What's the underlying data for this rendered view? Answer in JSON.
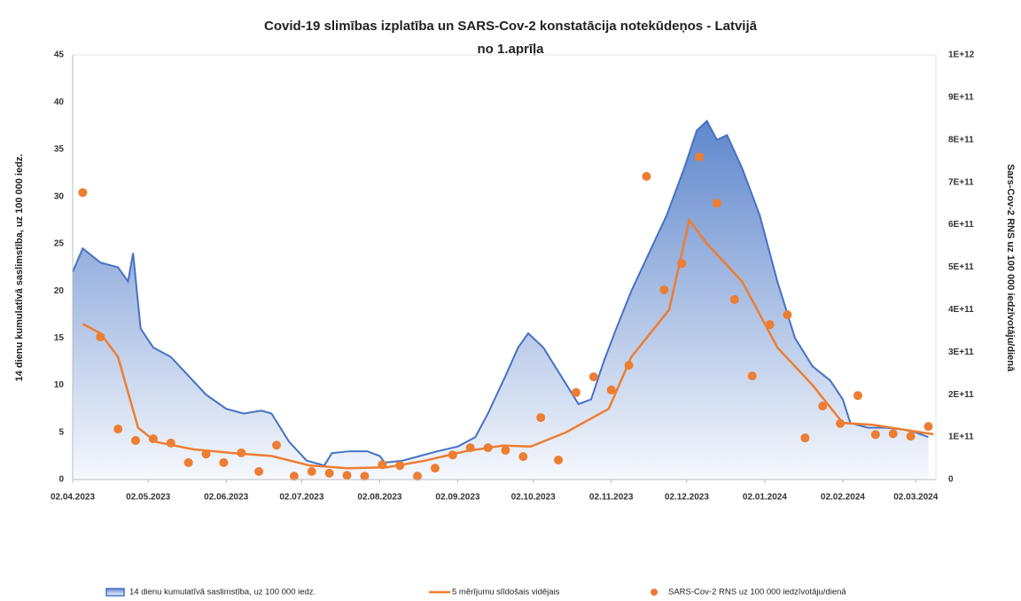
{
  "chart_data": {
    "type": "combo",
    "title": [
      "Covid-19 slimības izplatība un SARS-Cov-2 konstatācija notekūdeņos - Latvijā",
      "no 1.aprīļa"
    ],
    "y_label": "14 dienu kumulatīvā saslimstība, uz 100 000 iedz.",
    "y2_label": "Sars-Cov-2 RNS uz 100 000 iedzīvotāju/dienā",
    "xlim": [
      "2023-04-02",
      "2024-03-10"
    ],
    "xticks": [
      {
        "value": "2023-04-02",
        "label": "02.04.2023"
      },
      {
        "value": "2023-05-02",
        "label": "02.05.2023"
      },
      {
        "value": "2023-06-02",
        "label": "02.06.2023"
      },
      {
        "value": "2023-07-02",
        "label": "02.07.2023"
      },
      {
        "value": "2023-08-02",
        "label": "02.08.2023"
      },
      {
        "value": "2023-09-02",
        "label": "02.09.2023"
      },
      {
        "value": "2023-10-02",
        "label": "02.10.2023"
      },
      {
        "value": "2023-11-02",
        "label": "02.11.2023"
      },
      {
        "value": "2023-12-02",
        "label": "02.12.2023"
      },
      {
        "value": "2024-01-02",
        "label": "02.01.2024"
      },
      {
        "value": "2024-02-02",
        "label": "02.02.2024"
      },
      {
        "value": "2024-03-02",
        "label": "02.03.2024"
      }
    ],
    "ylim": [
      0,
      45
    ],
    "yticks": [
      0,
      5,
      10,
      15,
      20,
      25,
      30,
      35,
      40,
      45
    ],
    "y2lim": [
      0,
      1000000000000.0
    ],
    "y2ticks": [
      0,
      {
        "value": 100000000000.0,
        "label": "1E+11"
      },
      {
        "value": 200000000000.0,
        "label": "2E+11"
      },
      {
        "value": 300000000000.0,
        "label": "3E+11"
      },
      {
        "value": 400000000000.0,
        "label": "4E+11"
      },
      {
        "value": 500000000000.0,
        "label": "5E+11"
      },
      {
        "value": 600000000000.0,
        "label": "6E+11"
      },
      {
        "value": 700000000000.0,
        "label": "7E+11"
      },
      {
        "value": 800000000000.0,
        "label": "8E+11"
      },
      {
        "value": 900000000000.0,
        "label": "9E+11"
      },
      {
        "value": 1000000000000.0,
        "label": "1E+12"
      }
    ],
    "grid": false,
    "legend": "bottom",
    "series": [
      {
        "name": "14 dienu kumulatīvā saslimstība, uz 100 000 iedz.",
        "kind": "area",
        "color": "#4472c4",
        "x": [
          "2023-04-02",
          "2023-04-06",
          "2023-04-13",
          "2023-04-20",
          "2023-04-24",
          "2023-04-26",
          "2023-04-29",
          "2023-05-04",
          "2023-05-11",
          "2023-05-18",
          "2023-05-25",
          "2023-06-02",
          "2023-06-09",
          "2023-06-16",
          "2023-06-20",
          "2023-06-27",
          "2023-07-04",
          "2023-07-11",
          "2023-07-14",
          "2023-07-21",
          "2023-07-28",
          "2023-08-02",
          "2023-08-04",
          "2023-08-11",
          "2023-08-18",
          "2023-08-25",
          "2023-09-02",
          "2023-09-09",
          "2023-09-14",
          "2023-09-21",
          "2023-09-26",
          "2023-09-30",
          "2023-10-06",
          "2023-10-13",
          "2023-10-20",
          "2023-10-25",
          "2023-10-30",
          "2023-11-04",
          "2023-11-10",
          "2023-11-17",
          "2023-11-24",
          "2023-12-01",
          "2023-12-06",
          "2023-12-10",
          "2023-12-14",
          "2023-12-18",
          "2023-12-24",
          "2023-12-31",
          "2024-01-07",
          "2024-01-14",
          "2024-01-21",
          "2024-01-28",
          "2024-02-02",
          "2024-02-05",
          "2024-02-12",
          "2024-02-19",
          "2024-02-26",
          "2024-03-02",
          "2024-03-07"
        ],
        "values": [
          22,
          24.5,
          23,
          22.5,
          21,
          24,
          16,
          14,
          13,
          11,
          9,
          7.5,
          7,
          7.3,
          7,
          4,
          2,
          1.5,
          2.8,
          3,
          3,
          2.5,
          1.8,
          2,
          2.5,
          3,
          3.5,
          4.5,
          7,
          11,
          14,
          15.5,
          14,
          11,
          8,
          8.5,
          12.5,
          16,
          20,
          24,
          28,
          33,
          37,
          38,
          36,
          36.5,
          33,
          28,
          21,
          15,
          12,
          10.5,
          8.5,
          6,
          5.5,
          5.5,
          5.3,
          5,
          4.5
        ]
      },
      {
        "name": "5 mērījumu slīdošais vidējais",
        "kind": "line",
        "color": "#ed7d31",
        "x": [
          "2023-04-06",
          "2023-04-13",
          "2023-04-20",
          "2023-04-28",
          "2023-05-05",
          "2023-05-20",
          "2023-06-05",
          "2023-06-20",
          "2023-07-05",
          "2023-07-20",
          "2023-08-05",
          "2023-08-20",
          "2023-09-05",
          "2023-09-20",
          "2023-10-01",
          "2023-10-15",
          "2023-11-01",
          "2023-11-10",
          "2023-11-25",
          "2023-12-03",
          "2023-12-10",
          "2023-12-24",
          "2024-01-07",
          "2024-01-21",
          "2024-02-02",
          "2024-02-14",
          "2024-03-09"
        ],
        "values": [
          16.5,
          15.5,
          13,
          5.5,
          4,
          3.2,
          2.8,
          2.5,
          1.5,
          1.2,
          1.3,
          2,
          3,
          3.6,
          3.5,
          5,
          7.5,
          13,
          18,
          27.5,
          25,
          21,
          14,
          10,
          6,
          5.8,
          4.8
        ]
      },
      {
        "name": "SARS-Cov-2 RNS uz 100 000 iedzīvotāju/dienā",
        "kind": "scatter",
        "axis": "y2",
        "color": "#ed7d31",
        "x": [
          "2023-04-06",
          "2023-04-13",
          "2023-04-20",
          "2023-04-27",
          "2023-05-04",
          "2023-05-11",
          "2023-05-18",
          "2023-05-25",
          "2023-06-01",
          "2023-06-08",
          "2023-06-15",
          "2023-06-22",
          "2023-06-29",
          "2023-07-06",
          "2023-07-13",
          "2023-07-20",
          "2023-07-27",
          "2023-08-03",
          "2023-08-10",
          "2023-08-17",
          "2023-08-24",
          "2023-08-31",
          "2023-09-07",
          "2023-09-14",
          "2023-09-21",
          "2023-09-28",
          "2023-10-05",
          "2023-10-12",
          "2023-10-19",
          "2023-10-26",
          "2023-11-02",
          "2023-11-09",
          "2023-11-16",
          "2023-11-23",
          "2023-11-30",
          "2023-12-07",
          "2023-12-14",
          "2023-12-21",
          "2023-12-28",
          "2024-01-04",
          "2024-01-11",
          "2024-01-18",
          "2024-01-25",
          "2024-02-01",
          "2024-02-08",
          "2024-02-15",
          "2024-02-22",
          "2024-02-29",
          "2024-03-07"
        ],
        "values": [
          676000000000.0,
          336000000000.0,
          119000000000.0,
          92000000000.0,
          96000000000.0,
          86000000000.0,
          40000000000.0,
          60000000000.0,
          40000000000.0,
          63000000000.0,
          19000000000.0,
          81000000000.0,
          8000000000.0,
          19000000000.0,
          15000000000.0,
          10000000000.0,
          8000000000.0,
          35000000000.0,
          33000000000.0,
          8000000000.0,
          27000000000.0,
          58000000000.0,
          75000000000.0,
          75000000000.0,
          69000000000.0,
          54000000000.0,
          146000000000.0,
          46000000000.0,
          205000000000.0,
          242000000000.0,
          211000000000.0,
          269000000000.0,
          714000000000.0,
          447000000000.0,
          509000000000.0,
          760000000000.0,
          651000000000.0,
          424000000000.0,
          244000000000.0,
          365000000000.0,
          388000000000.0,
          98000000000.0,
          173000000000.0,
          132000000000.0,
          198000000000.0,
          106000000000.0,
          108000000000.0,
          102000000000.0,
          125000000000.0
        ]
      }
    ]
  }
}
